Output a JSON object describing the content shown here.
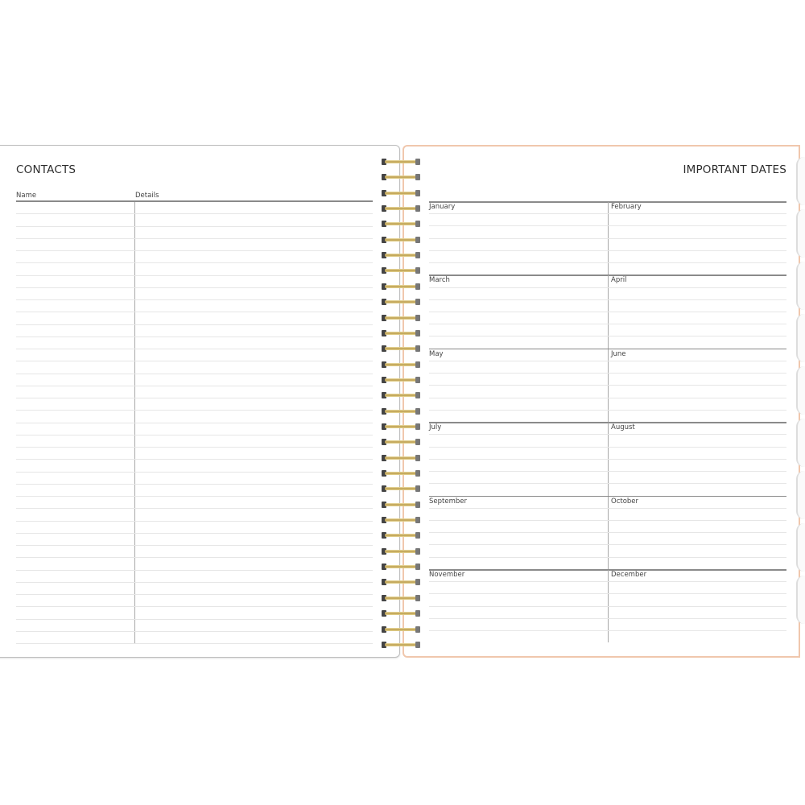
{
  "contacts": {
    "title": "CONTACTS",
    "columns": [
      "Name",
      "Details"
    ]
  },
  "important_dates": {
    "title": "IMPORTANT DATES",
    "months": [
      "January",
      "February",
      "March",
      "April",
      "May",
      "June",
      "July",
      "August",
      "September",
      "October",
      "November",
      "December"
    ]
  },
  "colors": {
    "right_page_border": "#f0c7ad",
    "spiral": "#c9ad5c"
  }
}
